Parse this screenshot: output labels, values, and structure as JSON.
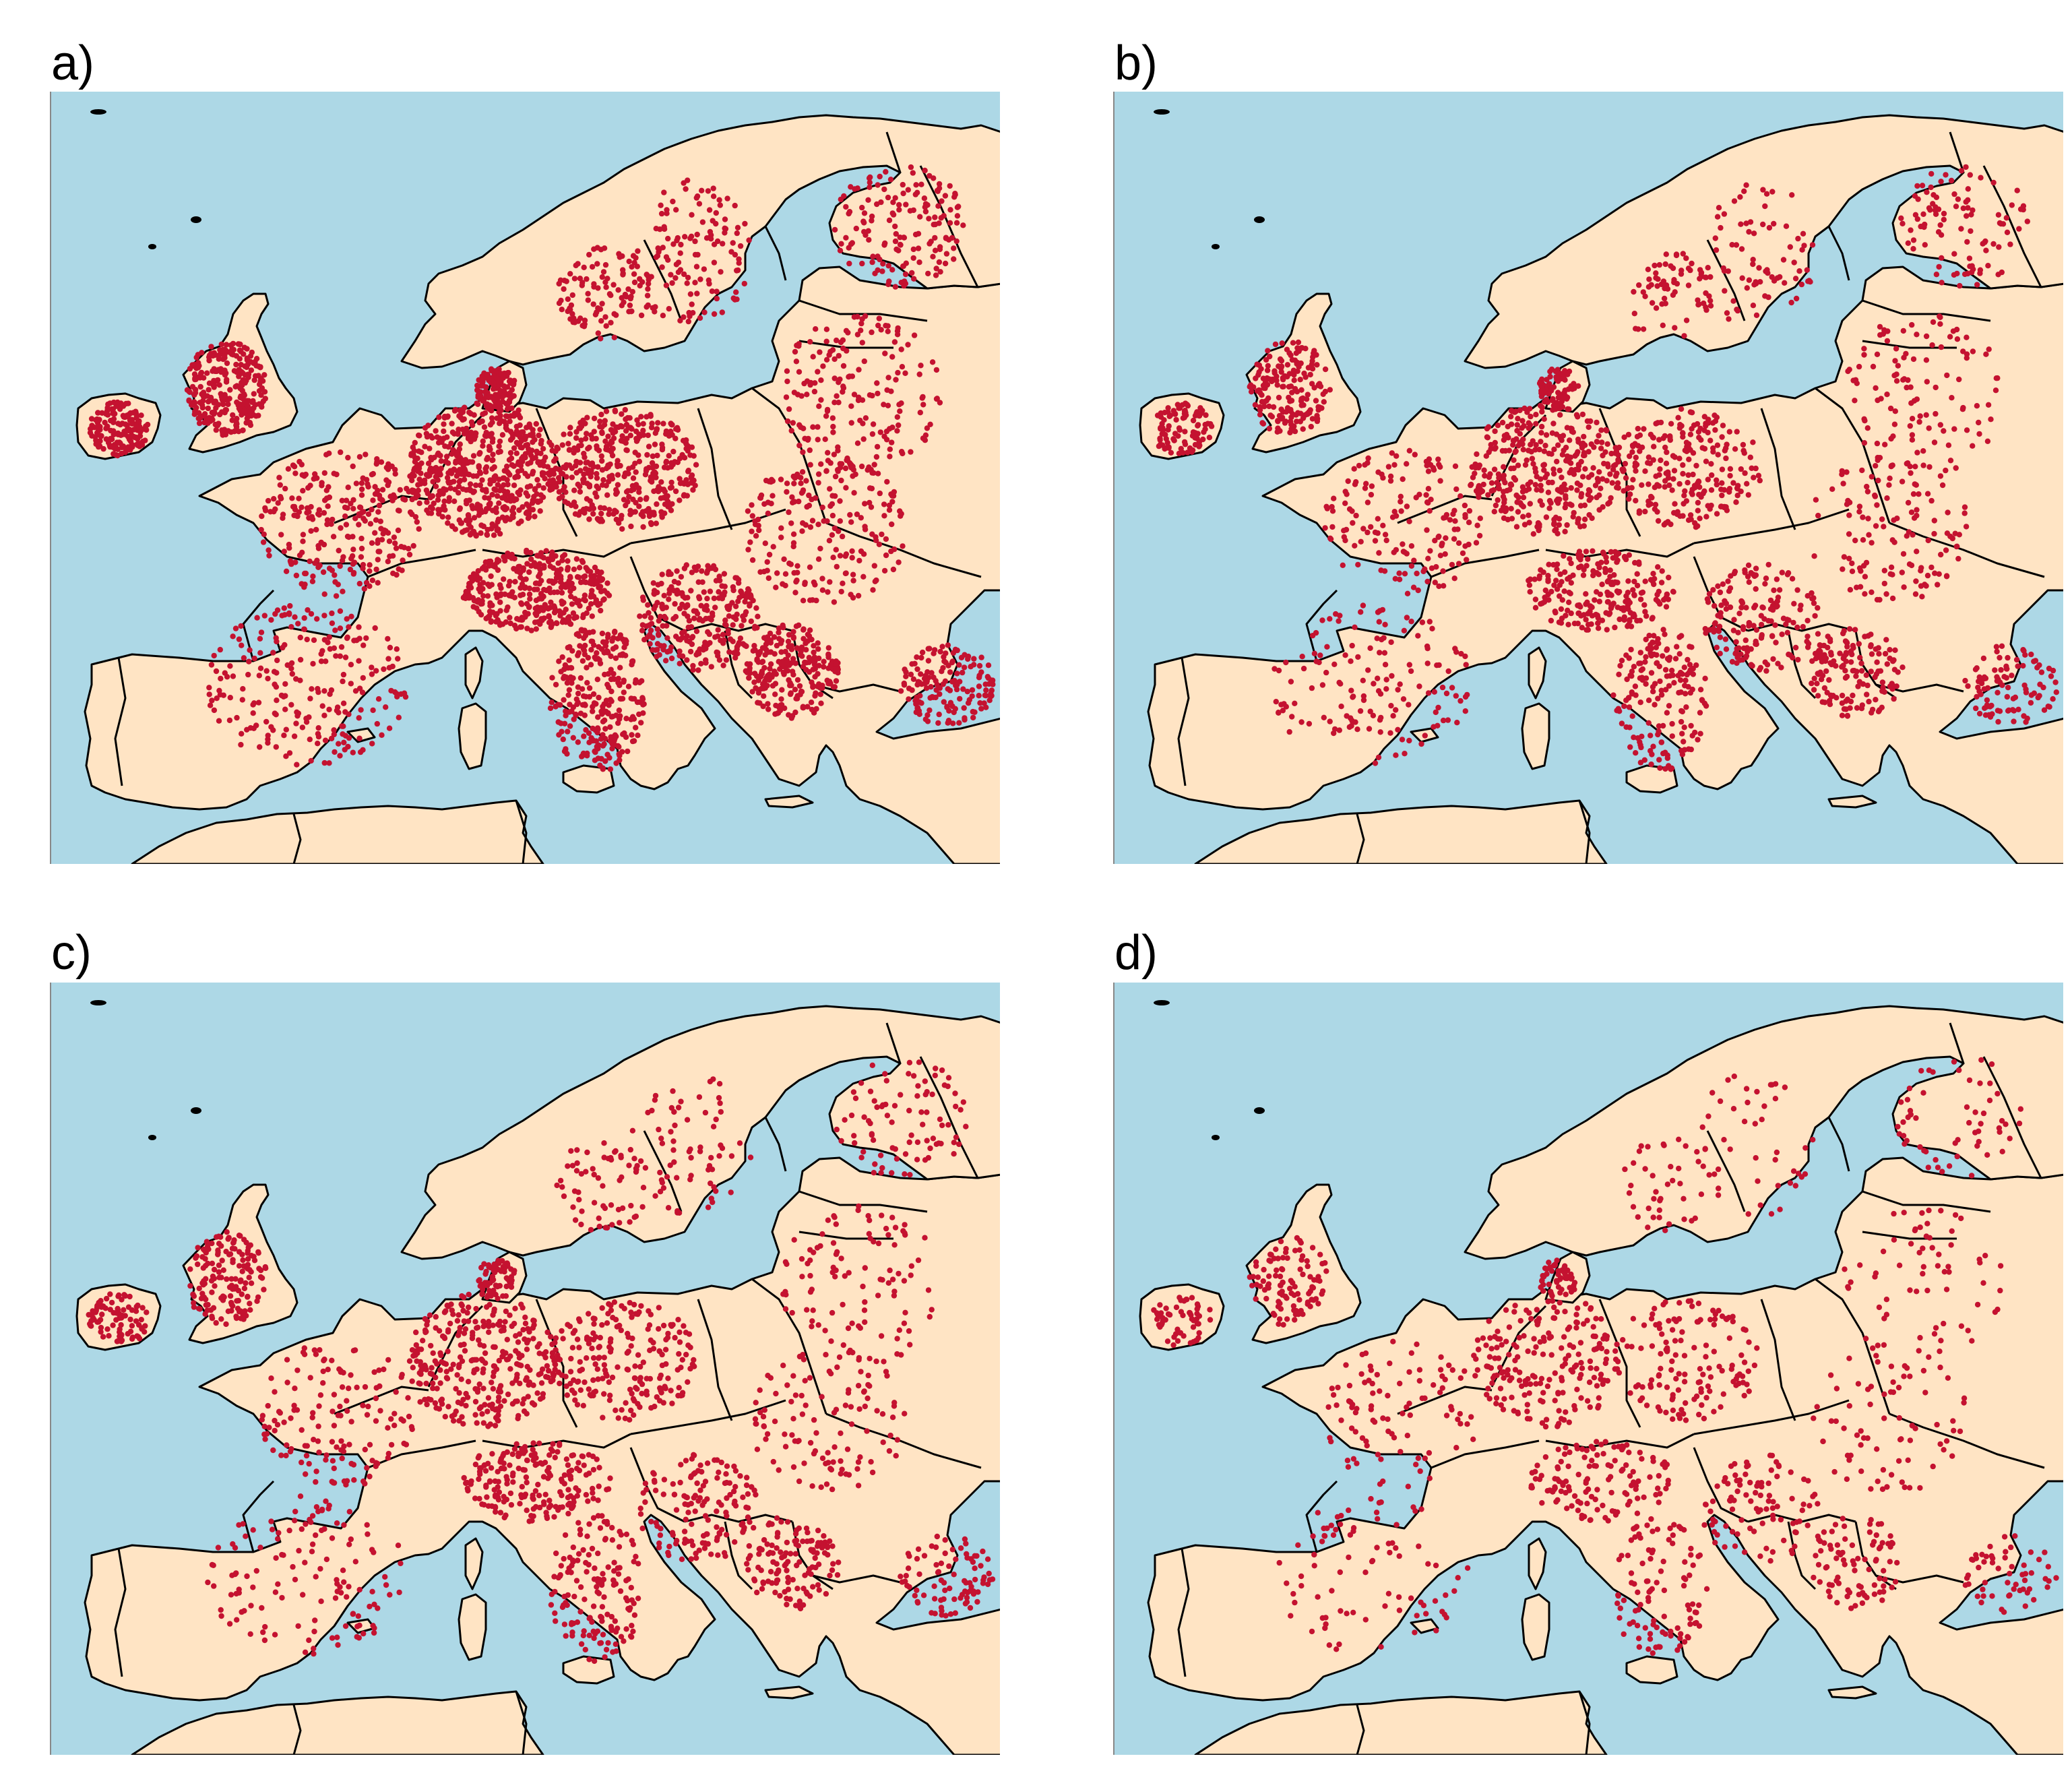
{
  "panels": [
    {
      "label": "a)",
      "density": 1.0
    },
    {
      "label": "b)",
      "density": 0.62
    },
    {
      "label": "c)",
      "density": 0.55
    },
    {
      "label": "d)",
      "density": 0.36
    }
  ],
  "colors": {
    "sea": "#add8e6",
    "land": "#ffe4c4",
    "border": "#000000",
    "points": "#c41230"
  }
}
